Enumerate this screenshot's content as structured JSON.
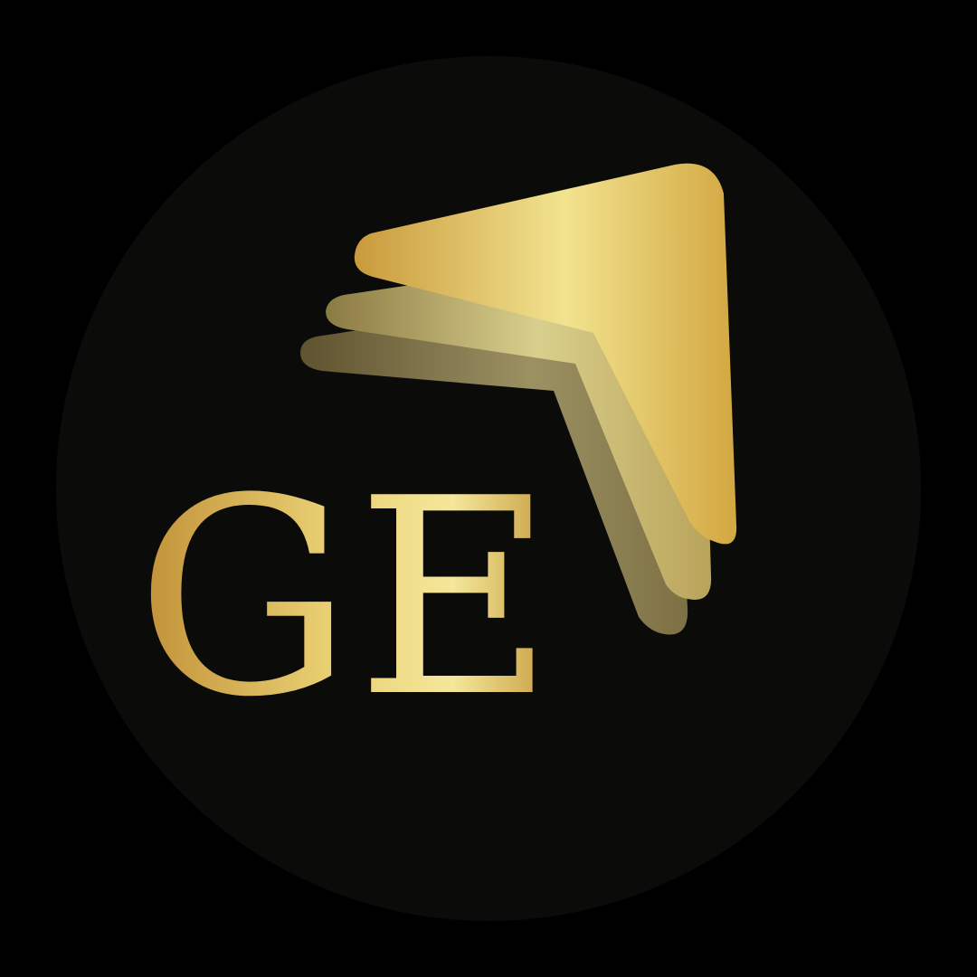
{
  "logo": {
    "monogram": "GE",
    "icon": "gold-arrow-chevron-icon"
  },
  "colors": {
    "background": "#000000",
    "badge_fill": "#0b0b09",
    "gold_light": "#f2e38f",
    "gold_mid": "#d7b24d",
    "gold_dark": "#a8822a",
    "olive_light": "#c9c18a",
    "olive_dark": "#6f6236"
  }
}
